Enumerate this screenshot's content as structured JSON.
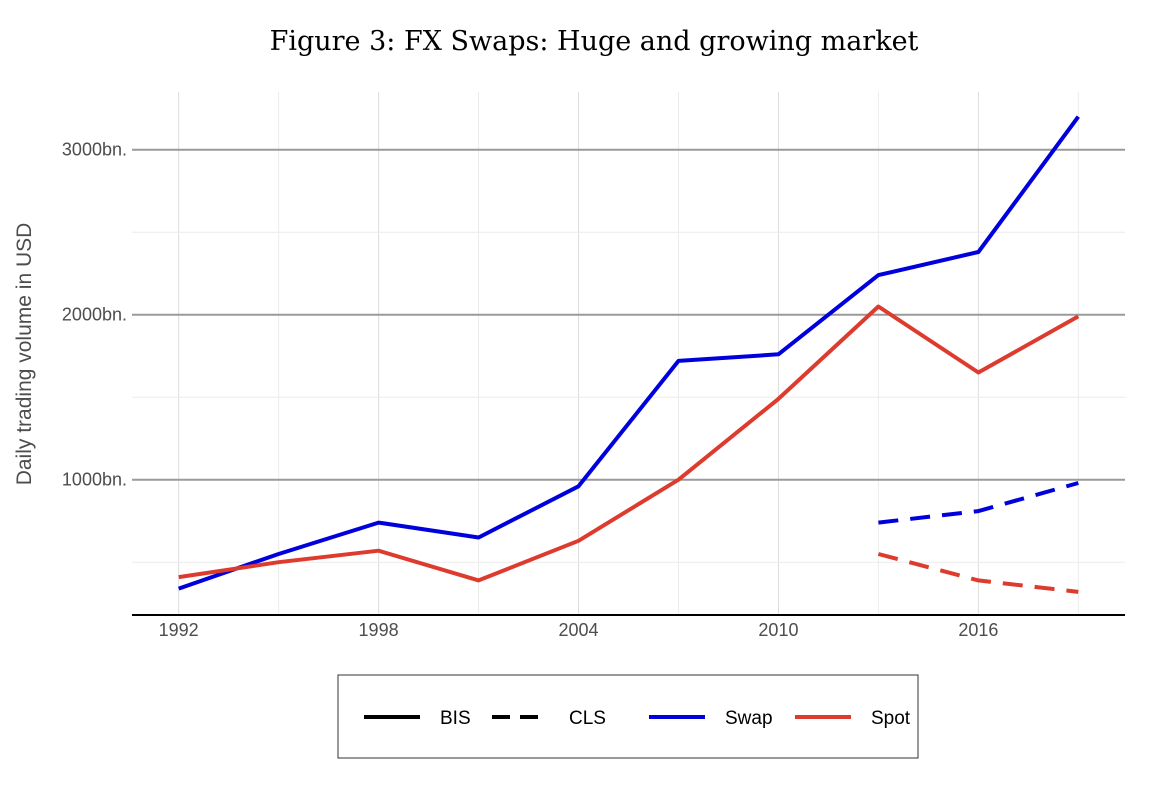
{
  "chart_data": {
    "type": "line",
    "title": "Figure 3: FX Swaps: Huge and growing market",
    "xlabel": "",
    "ylabel": "Daily trading volume in USD",
    "x_ticks": [
      "1992",
      "1998",
      "2004",
      "2010",
      "2016"
    ],
    "y_ticks": [
      "1000bn.",
      "2000bn.",
      "3000bn."
    ],
    "xlim": [
      1990.6,
      2020.4
    ],
    "ylim": [
      180,
      3350
    ],
    "y_tick_values": [
      1000,
      2000,
      3000
    ],
    "x_tick_values": [
      1992,
      1998,
      2004,
      2010,
      2016
    ],
    "grid": true,
    "legend_position": "bottom",
    "legend": [
      {
        "label": "BIS",
        "color": "#000000",
        "dash": "solid"
      },
      {
        "label": "CLS",
        "color": "#000000",
        "dash": "dashed"
      },
      {
        "label": "Swap",
        "color": "#0000dd",
        "dash": "solid"
      },
      {
        "label": "Spot",
        "color": "#dd3b2e",
        "dash": "solid"
      }
    ],
    "series": [
      {
        "name": "Swap",
        "source": "BIS",
        "color": "#0000dd",
        "dash": "solid",
        "x": [
          1992,
          1995,
          1998,
          2001,
          2004,
          2007,
          2010,
          2013,
          2016,
          2019
        ],
        "y": [
          340,
          550,
          740,
          650,
          960,
          1720,
          1760,
          2240,
          2380,
          3200
        ]
      },
      {
        "name": "Spot",
        "source": "BIS",
        "color": "#dd3b2e",
        "dash": "solid",
        "x": [
          1992,
          1995,
          1998,
          2001,
          2004,
          2007,
          2010,
          2013,
          2016,
          2019
        ],
        "y": [
          410,
          500,
          570,
          390,
          630,
          1000,
          1490,
          2050,
          1650,
          1990
        ]
      },
      {
        "name": "Swap",
        "source": "CLS",
        "color": "#0000dd",
        "dash": "dashed",
        "x": [
          2013,
          2016,
          2019
        ],
        "y": [
          740,
          810,
          980
        ]
      },
      {
        "name": "Spot",
        "source": "CLS",
        "color": "#dd3b2e",
        "dash": "dashed",
        "x": [
          2013,
          2016,
          2019
        ],
        "y": [
          550,
          390,
          320
        ]
      }
    ]
  }
}
